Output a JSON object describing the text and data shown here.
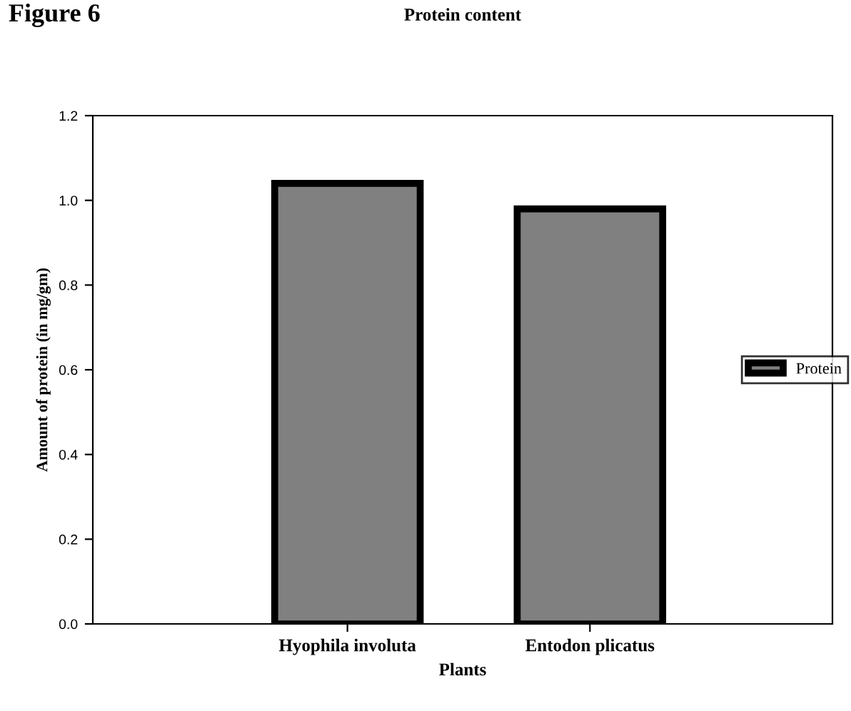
{
  "chart_data": {
    "type": "bar",
    "title": "Protein content",
    "xlabel": "Plants",
    "ylabel": "Amount of protein (in mg/gm)",
    "categories": [
      "Hyophila involuta",
      "Entodon plicatus"
    ],
    "series": [
      {
        "name": "Protein",
        "color": "#808080",
        "values": [
          1.04,
          0.98
        ]
      }
    ],
    "ylim": [
      0,
      1.2
    ],
    "yticks": [
      {
        "value": 0,
        "label": "0.0"
      },
      0.2,
      0.4,
      0.6,
      0.8,
      {
        "value": 1,
        "label": "1.0"
      },
      1.2
    ],
    "annotations": [
      "Figure 6"
    ],
    "legend": "right",
    "grid": false
  }
}
